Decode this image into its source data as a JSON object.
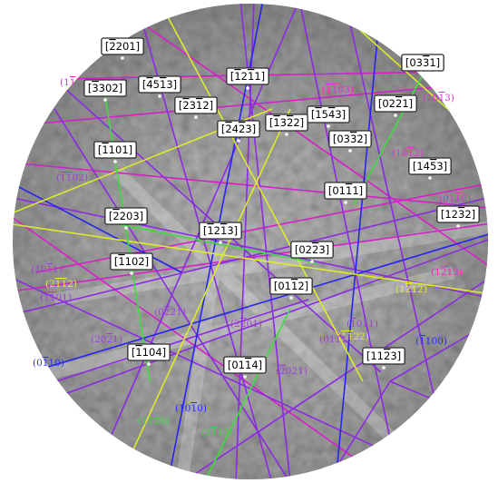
{
  "colors": {
    "background": "#ffffff",
    "pattern_base": "#8a8a8a",
    "magenta": "#d61fc9",
    "purple": "#8a2be2",
    "blue": "#2525ee",
    "yellow": "#dcec2a",
    "green": "#3fdc3f",
    "label_magenta": "#e82cd8",
    "label_purple": "#a03ee0",
    "label_blue": "#2b2bff",
    "label_yellow": "#e8e830",
    "label_green": "#3cd43c"
  },
  "zone_axes": [
    {
      "id": "z1",
      "text": "[_2201]"
    },
    {
      "id": "z2",
      "text": "[03_31]"
    },
    {
      "id": "z3",
      "text": "[_3302]"
    },
    {
      "id": "z4",
      "text": "[_45_13]"
    },
    {
      "id": "z5",
      "text": "[_12_11]"
    },
    {
      "id": "z6",
      "text": "[_23_12]"
    },
    {
      "id": "z7",
      "text": "[_15_43]"
    },
    {
      "id": "z8",
      "text": "[02_21]"
    },
    {
      "id": "z9",
      "text": "[_24_23]"
    },
    {
      "id": "z10",
      "text": "[_13_22]"
    },
    {
      "id": "z11",
      "text": "[03_32]"
    },
    {
      "id": "z12",
      "text": "[_1101]"
    },
    {
      "id": "z13",
      "text": "[14_53]"
    },
    {
      "id": "z14",
      "text": "[01_11]"
    },
    {
      "id": "z15",
      "text": "[_2203]"
    },
    {
      "id": "z16",
      "text": "[12_32]"
    },
    {
      "id": "z17",
      "text": "[_12_13]"
    },
    {
      "id": "z18",
      "text": "[02_23]"
    },
    {
      "id": "z19",
      "text": "[_1102]"
    },
    {
      "id": "z20",
      "text": "[01_12]"
    },
    {
      "id": "z21",
      "text": "[_1104]"
    },
    {
      "id": "z22",
      "text": "[01_14]"
    },
    {
      "id": "z23",
      "text": "[11_23]"
    }
  ],
  "band_labels": [
    {
      "id": "b1",
      "text": "(1_1",
      "color": "label_magenta"
    },
    {
      "id": "b2",
      "text": "(_1_103)",
      "color": "label_magenta"
    },
    {
      "id": "b3",
      "text": "(10_13)",
      "color": "label_magenta"
    },
    {
      "id": "b4",
      "text": "(_1_102)",
      "color": "label_purple"
    },
    {
      "id": "b5",
      "text": "(10_12)",
      "color": "label_magenta"
    },
    {
      "id": "b6",
      "text": "(01_10)",
      "color": "label_magenta"
    },
    {
      "id": "b7",
      "text": "(10_11)",
      "color": "label_purple"
    },
    {
      "id": "b8",
      "text": "(2_1_12)",
      "color": "label_yellow"
    },
    {
      "id": "b9",
      "text": "(_1_101)",
      "color": "label_purple"
    },
    {
      "id": "b10",
      "text": "(1_213)",
      "color": "label_magenta"
    },
    {
      "id": "b11",
      "text": "(1_212)",
      "color": "label_yellow"
    },
    {
      "id": "b12",
      "text": "(0_221)",
      "color": "label_purple"
    },
    {
      "id": "b13",
      "text": "(2_201)",
      "color": "label_purple"
    },
    {
      "id": "b14",
      "text": "(_1011)",
      "color": "label_purple"
    },
    {
      "id": "b15",
      "text": "(_1_122)",
      "color": "label_yellow"
    },
    {
      "id": "b16",
      "text": "(20_21)",
      "color": "label_purple"
    },
    {
      "id": "b17",
      "text": "(0111)",
      "color": "label_purple"
    },
    {
      "id": "b18",
      "text": "(_1100)",
      "color": "label_blue"
    },
    {
      "id": "b19",
      "text": "(0_110)",
      "color": "label_blue"
    },
    {
      "id": "b20",
      "text": "(_2021)",
      "color": "label_purple"
    },
    {
      "id": "b21",
      "text": "(10_10)",
      "color": "label_blue"
    },
    {
      "id": "b22",
      "text": "(11_20)",
      "color": "label_green"
    },
    {
      "id": "b23",
      "text": "(2_110)",
      "color": "label_green"
    }
  ]
}
